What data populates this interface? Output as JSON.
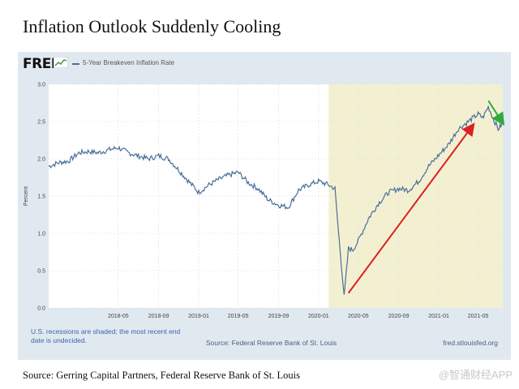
{
  "headline": "Inflation Outlook Suddenly Cooling",
  "fred": {
    "logo": "FRED",
    "logo_icon": "line-chart-icon",
    "series_title": "5-Year Breakeven Inflation Rate",
    "recession_note": "U.S. recessions are shaded; the most recent end date is undecided.",
    "source": "Source: Federal Reserve Bank of St. Louis",
    "url": "fred.stlouisfed.org"
  },
  "caption": "Source: Gerring Capital Partners, Federal Reserve Bank of St. Louis",
  "watermark": "@智通财经APP",
  "colors": {
    "series": "#4a6e99",
    "recession_shade": "#f3f0d2",
    "plot_bg": "#ffffff",
    "panel_bg": "#e1e9f0",
    "red_arrow": "#dd2020",
    "green_arrow": "#2faa3c"
  },
  "chart_data": {
    "type": "line",
    "title": "5-Year Breakeven Inflation Rate",
    "ylabel": "Percent",
    "xlabel": "",
    "ylim": [
      0,
      3
    ],
    "yticks": [
      "0.0",
      "0.5",
      "1.0",
      "1.5",
      "2.0",
      "2.5",
      "3.0"
    ],
    "xlim": [
      "2017-10-01",
      "2021-07-15"
    ],
    "xticks": [
      {
        "date": "2018-05-01",
        "label": "2018-05"
      },
      {
        "date": "2018-09-01",
        "label": "2018-09"
      },
      {
        "date": "2019-01-01",
        "label": "2019-01"
      },
      {
        "date": "2019-05-01",
        "label": "2019-05"
      },
      {
        "date": "2019-09-01",
        "label": "2019-09"
      },
      {
        "date": "2020-01-01",
        "label": "2020-01"
      },
      {
        "date": "2020-05-01",
        "label": "2020-05"
      },
      {
        "date": "2020-09-01",
        "label": "2020-09"
      },
      {
        "date": "2021-01-01",
        "label": "2021-01"
      },
      {
        "date": "2021-05-01",
        "label": "2021-05"
      }
    ],
    "grid": true,
    "recession": {
      "start": "2020-02-01",
      "end": "2021-07-15"
    },
    "series": [
      {
        "name": "5-Year Breakeven Inflation Rate",
        "x": [
          "2017-10-01",
          "2017-11-01",
          "2017-12-01",
          "2018-01-01",
          "2018-02-01",
          "2018-03-01",
          "2018-04-01",
          "2018-05-01",
          "2018-06-01",
          "2018-07-01",
          "2018-08-01",
          "2018-09-01",
          "2018-10-01",
          "2018-11-01",
          "2018-12-01",
          "2019-01-01",
          "2019-02-01",
          "2019-03-01",
          "2019-04-01",
          "2019-05-01",
          "2019-06-01",
          "2019-07-01",
          "2019-08-01",
          "2019-09-01",
          "2019-10-01",
          "2019-11-01",
          "2019-12-01",
          "2020-01-01",
          "2020-02-01",
          "2020-02-20",
          "2020-03-01",
          "2020-03-19",
          "2020-04-01",
          "2020-04-15",
          "2020-05-01",
          "2020-06-01",
          "2020-07-01",
          "2020-08-01",
          "2020-09-01",
          "2020-10-01",
          "2020-11-01",
          "2020-12-01",
          "2021-01-01",
          "2021-02-01",
          "2021-03-01",
          "2021-04-01",
          "2021-05-01",
          "2021-05-15",
          "2021-06-01",
          "2021-06-15",
          "2021-07-01",
          "2021-07-15"
        ],
        "y": [
          1.9,
          1.95,
          1.97,
          2.08,
          2.1,
          2.08,
          2.12,
          2.15,
          2.08,
          2.04,
          2.0,
          2.04,
          2.0,
          1.85,
          1.7,
          1.55,
          1.65,
          1.72,
          1.78,
          1.82,
          1.68,
          1.6,
          1.45,
          1.38,
          1.35,
          1.58,
          1.65,
          1.7,
          1.65,
          1.6,
          1.05,
          0.15,
          0.8,
          0.78,
          0.9,
          1.2,
          1.4,
          1.55,
          1.6,
          1.58,
          1.7,
          1.9,
          2.05,
          2.2,
          2.4,
          2.5,
          2.6,
          2.55,
          2.7,
          2.55,
          2.4,
          2.48
        ]
      }
    ],
    "annotations": [
      {
        "type": "arrow",
        "color": "red",
        "from": {
          "x": "2020-04-01",
          "y": 0.2
        },
        "to": {
          "x": "2021-04-15",
          "y": 2.45
        }
      },
      {
        "type": "arrow",
        "color": "green",
        "from": {
          "x": "2021-06-01",
          "y": 2.78
        },
        "to": {
          "x": "2021-07-15",
          "y": 2.48
        }
      }
    ]
  }
}
